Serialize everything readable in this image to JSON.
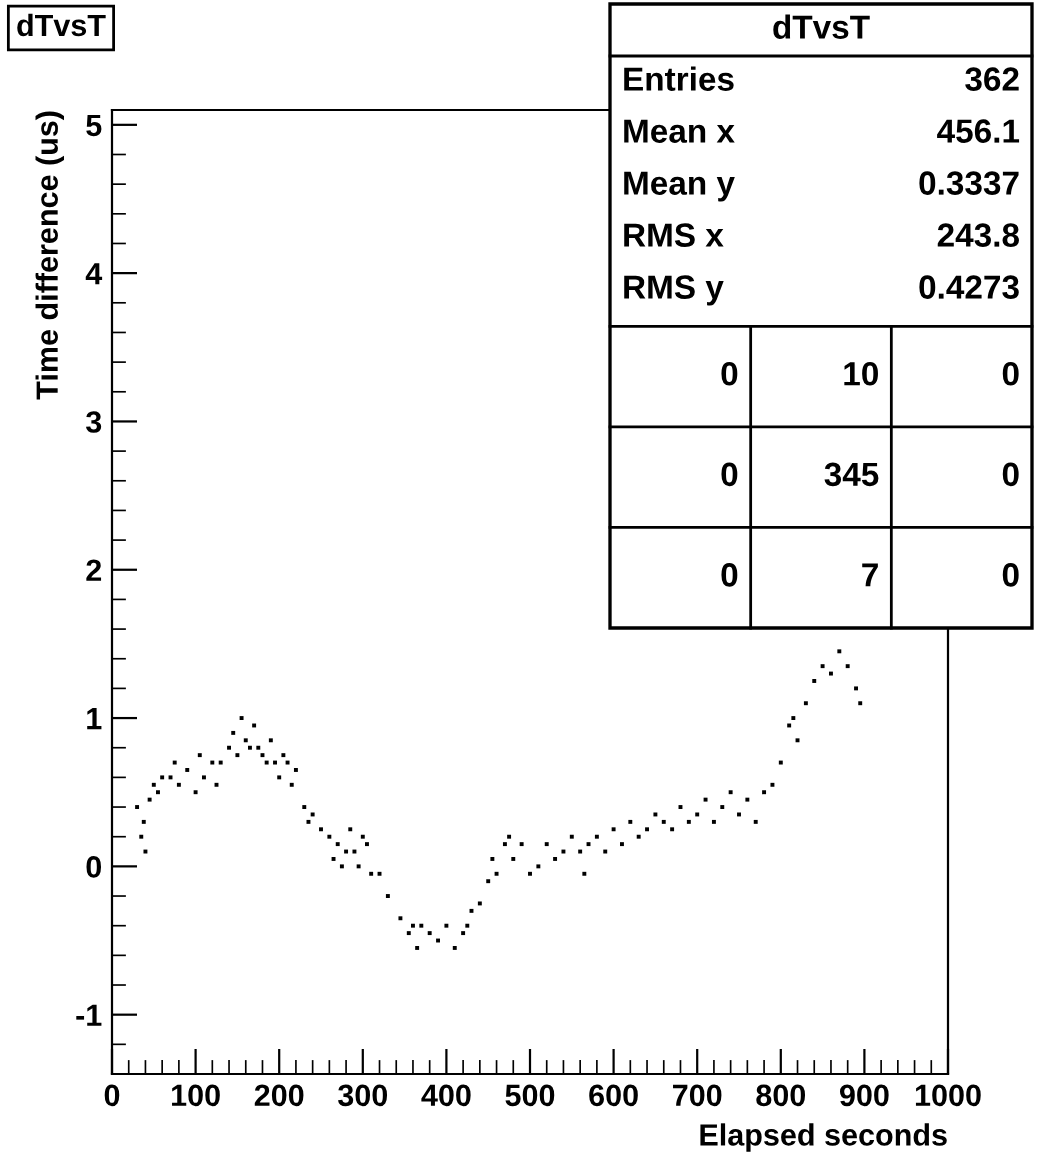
{
  "chart_data": {
    "type": "scatter",
    "title": "dTvsT",
    "xlabel": "Elapsed seconds",
    "ylabel": "Time difference (us)",
    "xlim": [
      0,
      1000
    ],
    "xticks": [
      0,
      100,
      200,
      300,
      400,
      500,
      600,
      700,
      800,
      900,
      1000
    ],
    "ylim": [
      -1.4,
      5.1
    ],
    "yticks": [
      -1,
      0,
      1,
      2,
      3,
      4,
      5
    ],
    "grid": false,
    "legend": false,
    "marker": "square",
    "annotations": [
      "Entries",
      "362",
      "Mean x",
      "456.1",
      "Mean y",
      "0.3337",
      "RMS x",
      "243.8",
      "RMS y",
      "0.4273",
      "0",
      "10",
      "0",
      "0",
      "345",
      "0",
      "0",
      "7",
      "0"
    ],
    "series": [
      {
        "color": "#000000",
        "x": [
          30,
          35,
          38,
          40,
          45,
          50,
          55,
          60,
          70,
          75,
          80,
          90,
          100,
          105,
          110,
          120,
          125,
          130,
          140,
          145,
          150,
          155,
          160,
          165,
          170,
          175,
          180,
          185,
          190,
          195,
          200,
          205,
          210,
          215,
          220,
          230,
          235,
          240,
          250,
          260,
          265,
          270,
          275,
          280,
          285,
          290,
          295,
          300,
          305,
          310,
          320,
          330,
          345,
          355,
          360,
          365,
          370,
          380,
          390,
          400,
          410,
          420,
          425,
          430,
          440,
          450,
          455,
          460,
          470,
          475,
          480,
          490,
          500,
          510,
          520,
          530,
          540,
          550,
          560,
          565,
          570,
          580,
          590,
          600,
          610,
          620,
          630,
          640,
          650,
          660,
          670,
          680,
          690,
          700,
          710,
          720,
          730,
          740,
          750,
          760,
          770,
          780,
          790,
          800,
          810,
          815,
          820,
          830,
          840,
          850,
          860,
          870,
          880,
          890,
          895
        ],
        "values": [
          0.4,
          0.2,
          0.3,
          0.1,
          0.45,
          0.55,
          0.5,
          0.6,
          0.6,
          0.7,
          0.55,
          0.65,
          0.5,
          0.75,
          0.6,
          0.7,
          0.55,
          0.7,
          0.8,
          0.9,
          0.75,
          1.0,
          0.85,
          0.8,
          0.95,
          0.8,
          0.75,
          0.7,
          0.85,
          0.7,
          0.6,
          0.75,
          0.7,
          0.55,
          0.65,
          0.4,
          0.3,
          0.35,
          0.25,
          0.2,
          0.05,
          0.15,
          0.0,
          0.1,
          0.25,
          0.1,
          0.0,
          0.2,
          0.15,
          -0.05,
          -0.05,
          -0.2,
          -0.35,
          -0.45,
          -0.4,
          -0.55,
          -0.4,
          -0.45,
          -0.5,
          -0.4,
          -0.55,
          -0.45,
          -0.4,
          -0.3,
          -0.25,
          -0.1,
          0.05,
          -0.05,
          0.15,
          0.2,
          0.05,
          0.15,
          -0.05,
          0.0,
          0.15,
          0.05,
          0.1,
          0.2,
          0.1,
          -0.05,
          0.15,
          0.2,
          0.1,
          0.25,
          0.15,
          0.3,
          0.2,
          0.25,
          0.35,
          0.3,
          0.25,
          0.4,
          0.3,
          0.35,
          0.45,
          0.3,
          0.4,
          0.5,
          0.35,
          0.45,
          0.3,
          0.5,
          0.55,
          0.7,
          0.95,
          1.0,
          0.85,
          1.1,
          1.25,
          1.35,
          1.3,
          1.45,
          1.35,
          1.2,
          1.1
        ]
      }
    ]
  }
}
